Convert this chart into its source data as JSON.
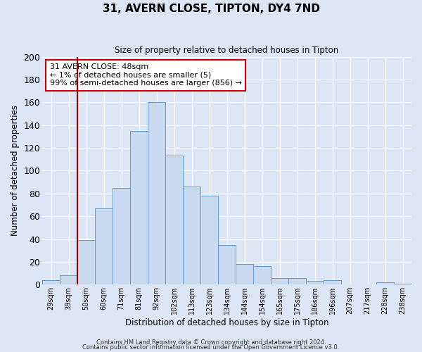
{
  "title": "31, AVERN CLOSE, TIPTON, DY4 7ND",
  "subtitle": "Size of property relative to detached houses in Tipton",
  "xlabel": "Distribution of detached houses by size in Tipton",
  "ylabel": "Number of detached properties",
  "bar_labels": [
    "29sqm",
    "39sqm",
    "50sqm",
    "60sqm",
    "71sqm",
    "81sqm",
    "92sqm",
    "102sqm",
    "113sqm",
    "123sqm",
    "134sqm",
    "144sqm",
    "154sqm",
    "165sqm",
    "175sqm",
    "186sqm",
    "196sqm",
    "207sqm",
    "217sqm",
    "228sqm",
    "238sqm"
  ],
  "bar_values": [
    4,
    8,
    39,
    67,
    85,
    135,
    160,
    113,
    86,
    78,
    35,
    18,
    16,
    6,
    6,
    3,
    4,
    0,
    0,
    2,
    1
  ],
  "bar_color": "#c8d9f0",
  "bar_edge_color": "#6699cc",
  "vline_index": 2,
  "vline_color": "#990000",
  "annotation_title": "31 AVERN CLOSE: 48sqm",
  "annotation_line1": "← 1% of detached houses are smaller (5)",
  "annotation_line2": "99% of semi-detached houses are larger (856) →",
  "annotation_box_color": "#ffffff",
  "annotation_box_edge": "#cc0000",
  "ylim": [
    0,
    200
  ],
  "yticks": [
    0,
    20,
    40,
    60,
    80,
    100,
    120,
    140,
    160,
    180,
    200
  ],
  "background_color": "#dce6f5",
  "grid_color": "#ffffff",
  "footer1": "Contains HM Land Registry data © Crown copyright and database right 2024.",
  "footer2": "Contains public sector information licensed under the Open Government Licence v3.0."
}
